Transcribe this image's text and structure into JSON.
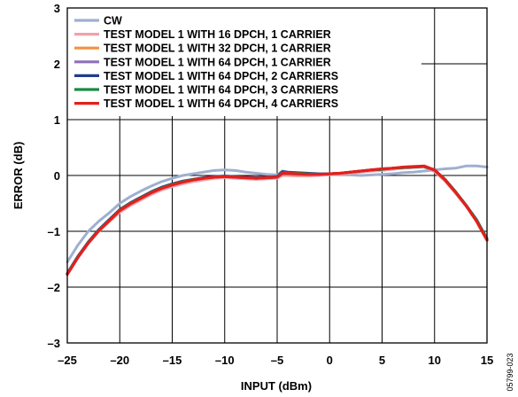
{
  "chart_data": {
    "type": "line",
    "xlabel": "INPUT (dBm)",
    "ylabel": "ERROR (dB)",
    "xlim": [
      -25,
      15
    ],
    "ylim": [
      -3,
      3
    ],
    "xticks": [
      -25,
      -20,
      -15,
      -10,
      -5,
      0,
      5,
      10,
      15
    ],
    "yticks": [
      -3,
      -2,
      -1,
      0,
      1,
      2,
      3
    ],
    "xtick_labels": [
      "–25",
      "–20",
      "–15",
      "–10",
      "–5",
      "0",
      "5",
      "10",
      "15"
    ],
    "ytick_labels": [
      "–3",
      "–2",
      "–1",
      "0",
      "1",
      "2",
      "3"
    ],
    "grid": true,
    "legend_position": "top-left",
    "figure_id": "05799-023",
    "series": [
      {
        "name": "CW",
        "color": "#9fafcf",
        "x": [
          -25,
          -24,
          -23,
          -22,
          -21,
          -20,
          -19,
          -18,
          -17,
          -16,
          -15,
          -14,
          -13,
          -12,
          -11,
          -10,
          -9,
          -8,
          -7,
          -6,
          -5,
          -4.5,
          -4,
          -3,
          -2,
          -1,
          0,
          1,
          2,
          3,
          4,
          5,
          6,
          7,
          8,
          9,
          10,
          11,
          12,
          13,
          14,
          15
        ],
        "y": [
          -1.55,
          -1.25,
          -1.0,
          -0.82,
          -0.67,
          -0.5,
          -0.38,
          -0.28,
          -0.19,
          -0.11,
          -0.05,
          0.0,
          0.03,
          0.06,
          0.09,
          0.1,
          0.09,
          0.06,
          0.04,
          0.02,
          0.01,
          0.08,
          0.06,
          0.04,
          0.03,
          0.02,
          0.02,
          0.01,
          0.01,
          0.0,
          0.01,
          0.02,
          0.03,
          0.05,
          0.06,
          0.08,
          0.1,
          0.12,
          0.13,
          0.17,
          0.17,
          0.15
        ]
      },
      {
        "name": "TEST MODEL 1 WITH 16 DPCH, 1 CARRIER",
        "color": "#f4a0ac",
        "x": [
          -25,
          -24,
          -23,
          -22,
          -21,
          -20,
          -19,
          -18,
          -17,
          -16,
          -15,
          -14,
          -13,
          -12,
          -11,
          -10,
          -9,
          -8,
          -7,
          -6,
          -5,
          -4.5,
          -4,
          -3,
          -2,
          -1,
          0,
          1,
          2,
          3,
          4,
          5,
          6,
          7,
          8,
          9,
          10,
          11,
          12,
          13,
          14,
          15
        ],
        "y": [
          -1.78,
          -1.48,
          -1.22,
          -1.0,
          -0.83,
          -0.66,
          -0.54,
          -0.44,
          -0.34,
          -0.26,
          -0.2,
          -0.15,
          -0.11,
          -0.08,
          -0.05,
          -0.04,
          -0.05,
          -0.06,
          -0.07,
          -0.06,
          -0.05,
          0.0,
          0.0,
          -0.01,
          -0.01,
          0.0,
          0.01,
          0.02,
          0.04,
          0.06,
          0.08,
          0.09,
          0.11,
          0.13,
          0.14,
          0.15,
          0.07,
          -0.1,
          -0.32,
          -0.55,
          -0.82,
          -1.15
        ]
      },
      {
        "name": "TEST MODEL 1 WITH 32 DPCH, 1 CARRIER",
        "color": "#f5923e",
        "x": [
          -25,
          -24,
          -23,
          -22,
          -21,
          -20,
          -19,
          -18,
          -17,
          -16,
          -15,
          -14,
          -13,
          -12,
          -11,
          -10,
          -9,
          -8,
          -7,
          -6,
          -5,
          -4.5,
          -4,
          -3,
          -2,
          -1,
          0,
          1,
          2,
          3,
          4,
          5,
          6,
          7,
          8,
          9,
          10,
          11,
          12,
          13,
          14,
          15
        ],
        "y": [
          -1.76,
          -1.46,
          -1.2,
          -0.98,
          -0.8,
          -0.62,
          -0.5,
          -0.4,
          -0.3,
          -0.22,
          -0.16,
          -0.11,
          -0.07,
          -0.05,
          -0.03,
          -0.02,
          -0.03,
          -0.04,
          -0.05,
          -0.04,
          -0.03,
          0.02,
          0.02,
          0.01,
          0.01,
          0.02,
          0.03,
          0.04,
          0.06,
          0.08,
          0.1,
          0.11,
          0.13,
          0.15,
          0.16,
          0.16,
          0.09,
          -0.08,
          -0.3,
          -0.54,
          -0.8,
          -1.14
        ]
      },
      {
        "name": "TEST MODEL 1 WITH 64 DPCH, 1 CARRIER",
        "color": "#8d72b8",
        "x": [
          -25,
          -24,
          -23,
          -22,
          -21,
          -20,
          -19,
          -18,
          -17,
          -16,
          -15,
          -14,
          -13,
          -12,
          -11,
          -10,
          -9,
          -8,
          -7,
          -6,
          -5,
          -4.5,
          -4,
          -3,
          -2,
          -1,
          0,
          1,
          2,
          3,
          4,
          5,
          6,
          7,
          8,
          9,
          10,
          11,
          12,
          13,
          14,
          15
        ],
        "y": [
          -1.77,
          -1.47,
          -1.21,
          -0.99,
          -0.81,
          -0.63,
          -0.51,
          -0.41,
          -0.31,
          -0.23,
          -0.17,
          -0.12,
          -0.08,
          -0.05,
          -0.03,
          -0.02,
          -0.03,
          -0.04,
          -0.05,
          -0.04,
          -0.03,
          0.03,
          0.03,
          0.02,
          0.02,
          0.02,
          0.03,
          0.04,
          0.06,
          0.08,
          0.1,
          0.11,
          0.13,
          0.14,
          0.15,
          0.16,
          0.09,
          -0.08,
          -0.3,
          -0.54,
          -0.8,
          -1.14
        ]
      },
      {
        "name": "TEST MODEL 1 WITH 64 DPCH, 2 CARRIERS",
        "color": "#1f3f8a",
        "x": [
          -25,
          -24,
          -23,
          -22,
          -21,
          -20,
          -19,
          -18,
          -17,
          -16,
          -15,
          -14,
          -13,
          -12,
          -11,
          -10,
          -9,
          -8,
          -7,
          -6,
          -5,
          -4.5,
          -4,
          -3,
          -2,
          -1,
          0,
          1,
          2,
          3,
          4,
          5,
          6,
          7,
          8,
          9,
          10,
          11,
          12,
          13,
          14,
          15
        ],
        "y": [
          -1.75,
          -1.45,
          -1.19,
          -0.97,
          -0.79,
          -0.61,
          -0.49,
          -0.39,
          -0.29,
          -0.21,
          -0.15,
          -0.1,
          -0.07,
          -0.04,
          -0.02,
          -0.01,
          -0.02,
          -0.03,
          -0.04,
          -0.03,
          -0.02,
          0.07,
          0.06,
          0.05,
          0.04,
          0.03,
          0.03,
          0.04,
          0.06,
          0.08,
          0.1,
          0.11,
          0.13,
          0.14,
          0.15,
          0.16,
          0.1,
          -0.07,
          -0.29,
          -0.53,
          -0.79,
          -1.13
        ]
      },
      {
        "name": "TEST MODEL 1 WITH 64 DPCH, 3 CARRIERS",
        "color": "#1a8a45",
        "x": [
          -25,
          -24,
          -23,
          -22,
          -21,
          -20,
          -19,
          -18,
          -17,
          -16,
          -15,
          -14,
          -13,
          -12,
          -11,
          -10,
          -9,
          -8,
          -7,
          -6,
          -5,
          -4.5,
          -4,
          -3,
          -2,
          -1,
          0,
          1,
          2,
          3,
          4,
          5,
          6,
          7,
          8,
          9,
          10,
          11,
          12,
          13,
          14,
          15
        ],
        "y": [
          -1.76,
          -1.46,
          -1.2,
          -0.98,
          -0.8,
          -0.62,
          -0.5,
          -0.4,
          -0.3,
          -0.22,
          -0.16,
          -0.11,
          -0.07,
          -0.05,
          -0.03,
          -0.02,
          -0.03,
          -0.04,
          -0.05,
          -0.04,
          -0.03,
          0.05,
          0.05,
          0.04,
          0.03,
          0.02,
          0.03,
          0.04,
          0.06,
          0.08,
          0.1,
          0.11,
          0.13,
          0.14,
          0.15,
          0.16,
          0.1,
          -0.07,
          -0.29,
          -0.53,
          -0.8,
          -1.14
        ]
      },
      {
        "name": "TEST MODEL 1 WITH 64 DPCH, 4 CARRIERS",
        "color": "#e3201c",
        "x": [
          -25,
          -24,
          -23,
          -22,
          -21,
          -20,
          -19,
          -18,
          -17,
          -16,
          -15,
          -14,
          -13,
          -12,
          -11,
          -10,
          -9,
          -8,
          -7,
          -6,
          -5,
          -4.5,
          -4,
          -3,
          -2,
          -1,
          0,
          1,
          2,
          3,
          4,
          5,
          6,
          7,
          8,
          9,
          10,
          11,
          12,
          13,
          14,
          15
        ],
        "y": [
          -1.77,
          -1.47,
          -1.21,
          -0.99,
          -0.81,
          -0.63,
          -0.51,
          -0.41,
          -0.31,
          -0.23,
          -0.17,
          -0.12,
          -0.08,
          -0.05,
          -0.03,
          -0.02,
          -0.03,
          -0.04,
          -0.05,
          -0.04,
          -0.03,
          0.04,
          0.04,
          0.03,
          0.02,
          0.02,
          0.03,
          0.04,
          0.06,
          0.08,
          0.1,
          0.12,
          0.13,
          0.15,
          0.16,
          0.17,
          0.1,
          -0.08,
          -0.3,
          -0.54,
          -0.82,
          -1.16
        ]
      }
    ]
  }
}
